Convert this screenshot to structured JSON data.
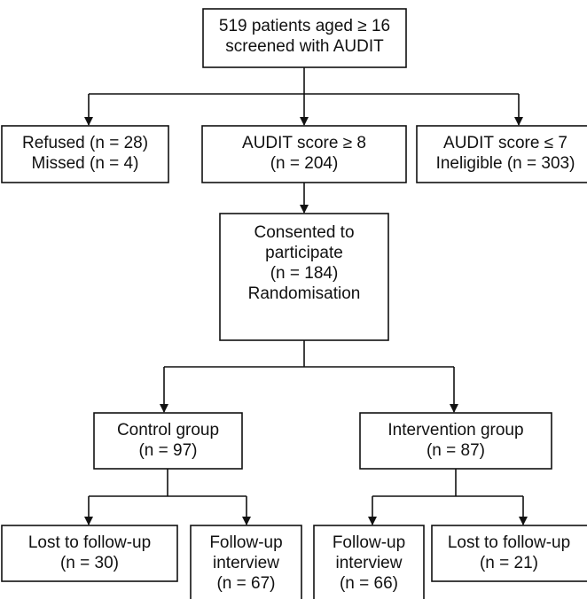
{
  "nodes": [
    {
      "lines": [
        "519 patients aged ≥ 16",
        "screened with AUDIT"
      ]
    },
    {
      "lines": [
        "Refused (n = 28)",
        "Missed (n = 4)"
      ]
    },
    {
      "lines": [
        "AUDIT score ≥ 8",
        "(n = 204)"
      ]
    },
    {
      "lines": [
        "AUDIT score ≤ 7",
        "Ineligible (n = 303)"
      ]
    },
    {
      "lines": [
        "Consented to",
        "participate",
        "(n = 184)",
        "Randomisation"
      ]
    },
    {
      "lines": [
        "Control group",
        "(n = 97)"
      ]
    },
    {
      "lines": [
        "Intervention group",
        "(n = 87)"
      ]
    },
    {
      "lines": [
        "Lost to follow-up",
        "(n = 30)"
      ]
    },
    {
      "lines": [
        "Follow-up",
        "interview",
        "(n = 67)"
      ]
    },
    {
      "lines": [
        "Follow-up",
        "interview",
        "(n = 66)"
      ]
    },
    {
      "lines": [
        "Lost to follow-up",
        "(n = 21)"
      ]
    }
  ]
}
